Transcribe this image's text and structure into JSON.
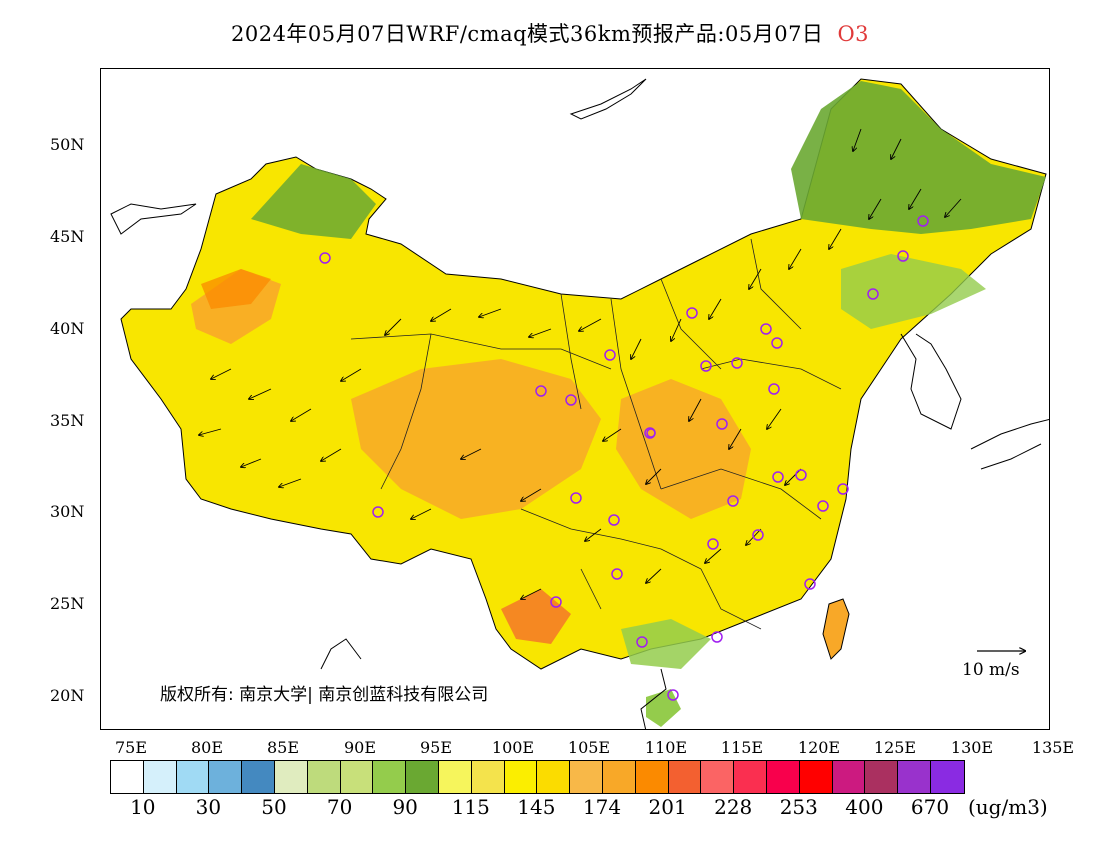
{
  "title": {
    "text": "2024年05月07日WRF/cmaq模式36km预报产品:05月07日",
    "species": "O3"
  },
  "axes": {
    "lat_labels": [
      "50N",
      "45N",
      "40N",
      "35N",
      "30N",
      "25N",
      "20N"
    ],
    "lon_labels": [
      "75E",
      "80E",
      "85E",
      "90E",
      "95E",
      "100E",
      "105E",
      "110E",
      "115E",
      "120E",
      "125E",
      "130E",
      "135E"
    ]
  },
  "copyright": "版权所有: 南京大学| 南京创蓝科技有限公司",
  "wind_scale": {
    "label": "10 m/s"
  },
  "colorbar": {
    "colors": [
      "#ffffff",
      "#d5f0fb",
      "#a0daf4",
      "#6db1dc",
      "#4489c0",
      "#e0ecbf",
      "#bedb7c",
      "#c8e07a",
      "#94cc4c",
      "#6aa832",
      "#f6f55c",
      "#f4e34c",
      "#fbee00",
      "#fbdc00",
      "#f8b848",
      "#f8a828",
      "#fb8a00",
      "#f36030",
      "#fb6464",
      "#fa2f50",
      "#f8004c",
      "#ff0000",
      "#cc1a80",
      "#aa3060",
      "#9932cc",
      "#8a2be2"
    ],
    "labels": [
      "10",
      "30",
      "50",
      "70",
      "90",
      "115",
      "145",
      "174",
      "201",
      "228",
      "253",
      "400",
      "670"
    ],
    "units": "(ug/m3)"
  }
}
